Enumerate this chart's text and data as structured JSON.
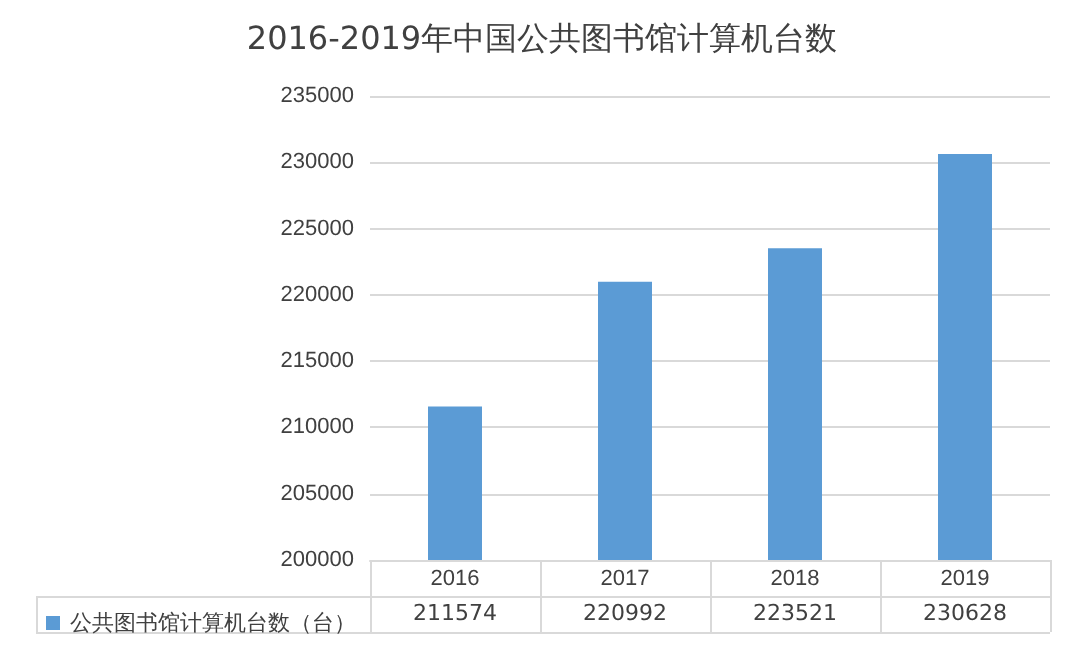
{
  "chart_data": {
    "type": "bar",
    "title": "2016-2019年中国公共图书馆计算机台数",
    "categories": [
      "2016",
      "2017",
      "2018",
      "2019"
    ],
    "series": [
      {
        "name": "公共图书馆计算机台数（台）",
        "color": "#5b9bd5",
        "values": [
          211574,
          220992,
          223521,
          230628
        ]
      }
    ],
    "ylim": [
      200000,
      235000
    ],
    "yticks": [
      200000,
      205000,
      210000,
      215000,
      220000,
      225000,
      230000,
      235000
    ],
    "grid": "y",
    "legend": "bottom left",
    "data_labels": true
  }
}
